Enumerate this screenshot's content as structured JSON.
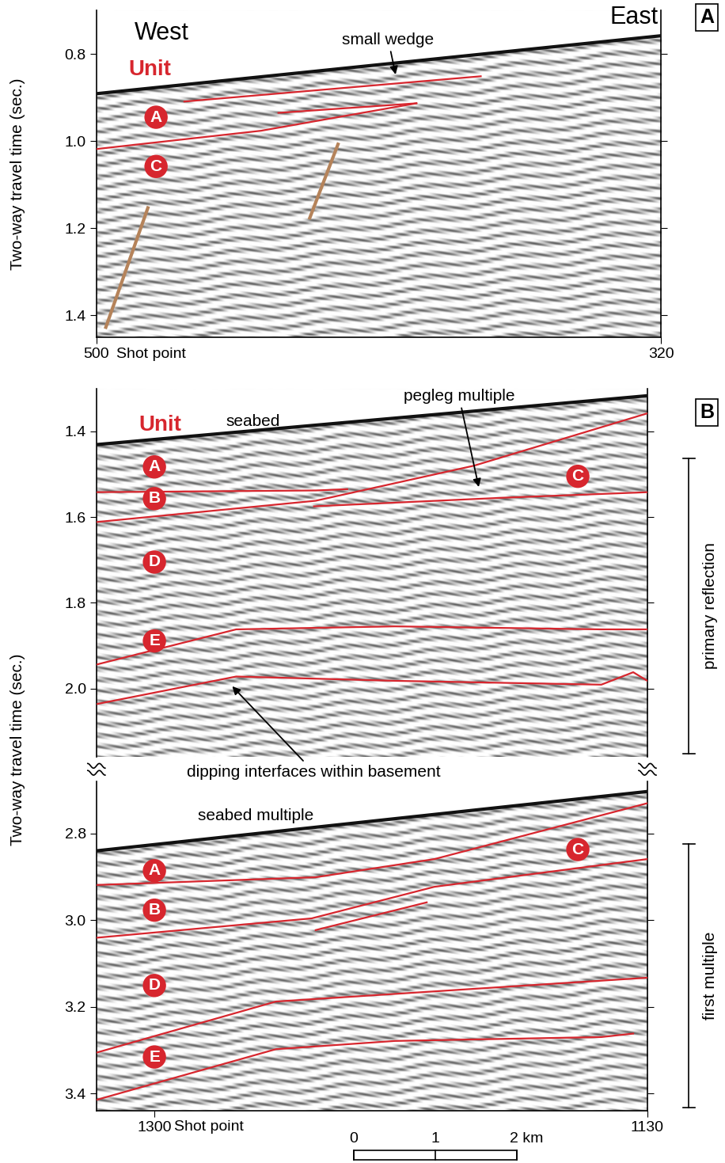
{
  "chart_data": [
    {
      "type": "seismic_section",
      "panel": "A",
      "direction_labels": {
        "west": "West",
        "east": "East"
      },
      "xlabel": "Shot point",
      "ylabel": "Two-way travel time (sec.)",
      "xlim": [
        500,
        320
      ],
      "xticks": [
        500,
        320
      ],
      "ylim": [
        1.45,
        0.7
      ],
      "yticks": [
        0.8,
        1.0,
        1.2,
        1.4
      ],
      "grid": false,
      "seabed": {
        "color": "#111111",
        "x": [
          500,
          320
        ],
        "y": [
          0.891,
          0.758
        ]
      },
      "horizons": [
        {
          "color": "#d7262e",
          "x": [
            472,
            377.5
          ],
          "y": [
            0.909,
            0.851
          ]
        },
        {
          "color": "#d7262e",
          "x": [
            442,
            398
          ],
          "y": [
            0.935,
            0.913
          ]
        },
        {
          "color": "#d7262e",
          "x": [
            500,
            447.5,
            398
          ],
          "y": [
            1.018,
            0.976,
            0.913
          ]
        }
      ],
      "faults": [
        {
          "color": "#b5835a",
          "x": [
            497,
            483.6
          ],
          "y": [
            1.427,
            1.153
          ]
        },
        {
          "color": "#b5835a",
          "x": [
            432,
            423
          ],
          "y": [
            1.176,
            1.007
          ]
        }
      ],
      "unit_heading": {
        "text": "Unit",
        "color": "#d7262e",
        "x": 483,
        "y": 0.836
      },
      "units": {
        "color": "#d7262e",
        "items": [
          {
            "label": "A",
            "x": 481,
            "y": 0.945
          },
          {
            "label": "C",
            "x": 481,
            "y": 1.058
          }
        ]
      },
      "annotations": [
        {
          "text": "small wedge",
          "text_x": 407,
          "text_y": 0.767,
          "x": 404.5,
          "y": 0.852
        }
      ]
    },
    {
      "type": "seismic_section",
      "panel": "B",
      "ylabel": "Two-way travel time (sec.)",
      "section_label": "primary reflection",
      "tick_labels": "y",
      "xlim": [
        1320,
        1130
      ],
      "ylim": [
        2.16,
        1.3
      ],
      "yticks": [
        1.4,
        1.6,
        1.8,
        2.0
      ],
      "grid": false,
      "seabed": {
        "color": "#111111",
        "x": [
          1320,
          1130
        ],
        "y": [
          1.431,
          1.317
        ]
      },
      "horizons": [
        {
          "color": "#d7262e",
          "x": [
            1320.5,
            1244.4,
            1233.5
          ],
          "y": [
            1.542,
            1.538,
            1.535
          ]
        },
        {
          "color": "#d7262e",
          "x": [
            1320.5,
            1244.4,
            1189.7,
            1130
          ],
          "y": [
            1.612,
            1.562,
            1.48,
            1.358
          ]
        },
        {
          "color": "#d7262e",
          "x": [
            1245.0,
            1180,
            1130
          ],
          "y": [
            1.575,
            1.555,
            1.542
          ]
        },
        {
          "color": "#d7262e",
          "x": [
            1320.5,
            1271.8,
            1217.1,
            1145.9,
            1130
          ],
          "y": [
            1.945,
            1.862,
            1.855,
            1.862,
            1.862
          ]
        },
        {
          "color": "#d7262e",
          "x": [
            1320.5,
            1271.8,
            1217.1,
            1145.9,
            1134.9,
            1130
          ],
          "y": [
            2.037,
            1.972,
            1.982,
            1.991,
            1.962,
            1.982
          ]
        }
      ],
      "unit_heading": {
        "text": "Unit",
        "color": "#d7262e",
        "x": 1298,
        "y": 1.385
      },
      "units": {
        "color": "#d7262e",
        "items": [
          {
            "label": "A",
            "x": 1300,
            "y": 1.483
          },
          {
            "label": "B",
            "x": 1300,
            "y": 1.557
          },
          {
            "label": "D",
            "x": 1300,
            "y": 1.705
          },
          {
            "label": "E",
            "x": 1300,
            "y": 1.889
          },
          {
            "label": "C",
            "x": 1154,
            "y": 1.505
          }
        ]
      },
      "labels": [
        {
          "text": "seabed",
          "x": 1266,
          "y": 1.378
        }
      ],
      "annotations": [
        {
          "text": "pegleg multiple",
          "text_x": 1195,
          "text_y": 1.318,
          "x": 1188,
          "y": 1.535
        },
        {
          "text": "dipping interfaces within basement",
          "text_x": 1245,
          "text_y": 2.195,
          "x": 1273.7,
          "y": 1.991
        }
      ]
    },
    {
      "type": "seismic_section",
      "section_label": "first multiple",
      "xlabel": "Shot point",
      "xlim": [
        1320,
        1130
      ],
      "xticks": [
        1300,
        1130
      ],
      "ylim": [
        3.44,
        2.68
      ],
      "yticks": [
        2.8,
        3.0,
        3.2,
        3.4
      ],
      "grid": false,
      "seabed": {
        "color": "#111111",
        "x": [
          1320,
          1130
        ],
        "y": [
          2.84,
          2.703
        ]
      },
      "horizons": [
        {
          "color": "#d7262e",
          "x": [
            1320.5,
            1244.4,
            1203.4,
            1130
          ],
          "y": [
            2.919,
            2.901,
            2.859,
            2.73
          ]
        },
        {
          "color": "#d7262e",
          "x": [
            1320.5,
            1245.8,
            1203.4,
            1130
          ],
          "y": [
            3.041,
            2.996,
            2.923,
            2.859
          ]
        },
        {
          "color": "#d7262e",
          "x": [
            1244.4,
            1206.1
          ],
          "y": [
            3.023,
            2.959
          ]
        },
        {
          "color": "#d7262e",
          "x": [
            1320.5,
            1258.1,
            1130
          ],
          "y": [
            3.307,
            3.188,
            3.133
          ]
        },
        {
          "color": "#d7262e",
          "x": [
            1320.5,
            1258.1,
            1217.1,
            1145.9,
            1134.9
          ],
          "y": [
            3.416,
            3.298,
            3.279,
            3.27,
            3.262
          ]
        }
      ],
      "units": {
        "color": "#d7262e",
        "items": [
          {
            "label": "A",
            "x": 1300,
            "y": 2.886
          },
          {
            "label": "B",
            "x": 1300,
            "y": 2.977
          },
          {
            "label": "D",
            "x": 1300,
            "y": 3.151
          },
          {
            "label": "E",
            "x": 1300,
            "y": 3.316
          },
          {
            "label": "C",
            "x": 1154,
            "y": 2.837
          }
        ]
      },
      "labels": [
        {
          "text": "seabed multiple",
          "x": 1265,
          "y": 2.76
        }
      ],
      "scale_bar": {
        "ticks": [
          0,
          1,
          {
            "value": 2,
            "label": "2 km"
          }
        ]
      }
    }
  ]
}
